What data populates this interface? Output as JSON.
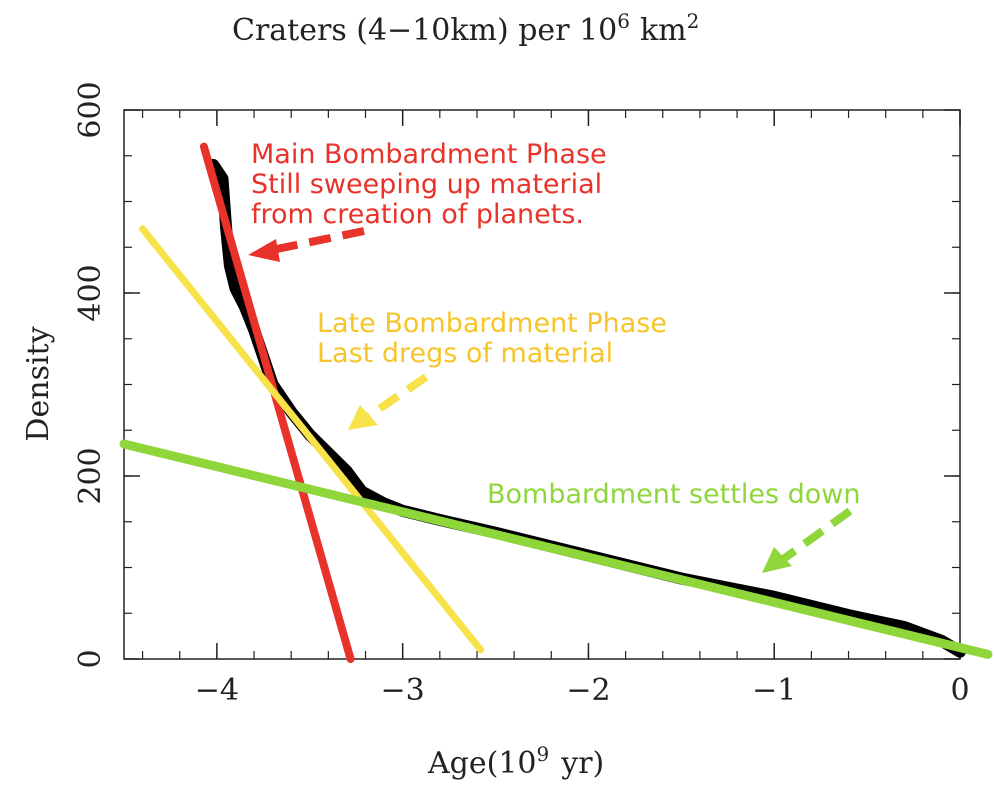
{
  "chart_data": {
    "type": "line",
    "title": "Craters (4−10km) per 10",
    "title_exp": "6",
    "title_unit": "km",
    "title_unit_exp": "2",
    "xlabel": "Age(10",
    "xlabel_exp": "9",
    "xlabel_unit": "yr)",
    "ylabel": "Density",
    "xlim": [
      -4.5,
      0
    ],
    "ylim": [
      0,
      600
    ],
    "x_ticks": [
      -4,
      -3,
      -2,
      -1,
      0
    ],
    "x_tick_labels": [
      "−4",
      "−3",
      "−2",
      "−1",
      "0"
    ],
    "y_ticks": [
      0,
      200,
      400,
      600
    ],
    "y_tick_labels": [
      "0",
      "200",
      "400",
      "600"
    ],
    "grid": false,
    "series": [
      {
        "color": "#000000",
        "x": [
          -4.02,
          -3.97,
          -3.95,
          -3.93,
          -3.9,
          -3.85,
          -3.8,
          -3.75,
          -3.7,
          -3.6,
          -3.5,
          -3.4,
          -3.3,
          -3.22,
          -3.1,
          -3.0,
          -2.8,
          -2.5,
          -2.0,
          -1.5,
          -1.0,
          -0.6,
          -0.3,
          -0.1,
          0.0
        ],
        "y": [
          540,
          525,
          470,
          430,
          405,
          385,
          360,
          330,
          300,
          270,
          245,
          225,
          205,
          183,
          170,
          162,
          152,
          138,
          113,
          88,
          68,
          48,
          35,
          20,
          8
        ]
      },
      {
        "color": "#e8322a",
        "x": [
          -4.07,
          -3.28
        ],
        "y": [
          560,
          0
        ]
      },
      {
        "color": "#f7e24a",
        "x": [
          -4.4,
          -2.58
        ],
        "y": [
          470,
          10
        ]
      },
      {
        "color": "#8ed63a",
        "x": [
          -4.5,
          0.15
        ],
        "y": [
          235,
          5
        ]
      }
    ],
    "annotations": [
      {
        "color": "#e8322a",
        "lines": [
          "Main Bombardment Phase",
          "Still sweeping up material",
          "from creation of planets."
        ]
      },
      {
        "color": "#f5c52a",
        "lines": [
          "Late Bombardment Phase",
          "Last dregs of material"
        ]
      },
      {
        "color": "#8ed63a",
        "lines": [
          "Bombardment settles down"
        ]
      }
    ]
  }
}
